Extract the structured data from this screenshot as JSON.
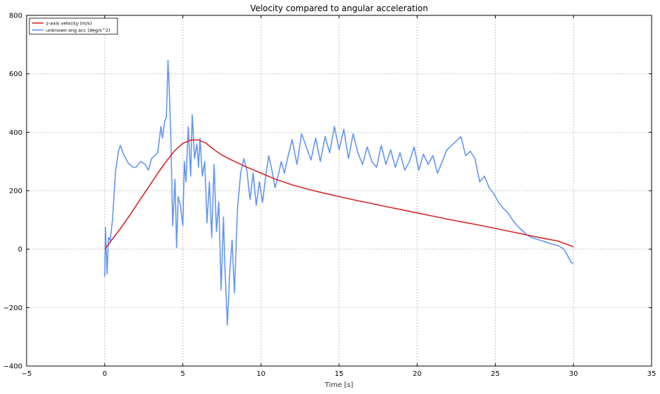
{
  "chart_data": {
    "type": "line",
    "title": "Velocity compared to angular acceleration",
    "xlabel": "Time [s]",
    "ylabel": "",
    "xlim": [
      -5,
      35
    ],
    "ylim": [
      -400,
      800
    ],
    "xticks": [
      -5,
      0,
      5,
      10,
      15,
      20,
      25,
      30,
      35
    ],
    "yticks": [
      -400,
      -200,
      0,
      200,
      400,
      600,
      800
    ],
    "grid": true,
    "legend_position": "top-left",
    "series": [
      {
        "name": "z-axis velocity (m/s)",
        "color": "#d62728",
        "x": [
          0,
          0.5,
          1,
          1.5,
          2,
          2.5,
          3,
          3.5,
          4,
          4.5,
          5,
          5.5,
          6,
          6.5,
          7,
          7.5,
          8,
          9,
          10,
          11,
          12,
          13,
          14,
          15,
          16,
          17,
          18,
          19,
          20,
          21,
          22,
          23,
          24,
          25,
          26,
          27,
          28,
          29,
          30
        ],
        "y": [
          0,
          35,
          70,
          108,
          148,
          188,
          228,
          268,
          305,
          338,
          362,
          373,
          374,
          362,
          340,
          322,
          308,
          283,
          260,
          238,
          220,
          205,
          192,
          180,
          168,
          157,
          146,
          135,
          124,
          113,
          102,
          92,
          82,
          71,
          60,
          49,
          38,
          28,
          8
        ]
      },
      {
        "name": "unknown ang acc (deg/s^2)",
        "color": "#6495ed",
        "x": [
          0,
          0.05,
          0.15,
          0.25,
          0.35,
          0.5,
          0.7,
          0.9,
          1.0,
          1.2,
          1.5,
          1.8,
          2.0,
          2.3,
          2.6,
          2.8,
          3.0,
          3.2,
          3.4,
          3.6,
          3.7,
          3.85,
          3.95,
          4.05,
          4.15,
          4.25,
          4.35,
          4.5,
          4.6,
          4.7,
          4.85,
          5.0,
          5.1,
          5.2,
          5.35,
          5.5,
          5.6,
          5.75,
          5.9,
          6.0,
          6.1,
          6.25,
          6.4,
          6.55,
          6.7,
          6.85,
          7.0,
          7.15,
          7.3,
          7.45,
          7.6,
          7.7,
          7.85,
          8.0,
          8.15,
          8.3,
          8.5,
          8.7,
          8.9,
          9.1,
          9.3,
          9.5,
          9.7,
          9.9,
          10.1,
          10.3,
          10.5,
          10.7,
          10.9,
          11.1,
          11.3,
          11.5,
          11.7,
          12.0,
          12.3,
          12.6,
          12.9,
          13.2,
          13.5,
          13.8,
          14.1,
          14.4,
          14.7,
          15.0,
          15.3,
          15.6,
          15.9,
          16.2,
          16.5,
          16.8,
          17.1,
          17.4,
          17.7,
          18.0,
          18.3,
          18.6,
          18.9,
          19.2,
          19.5,
          19.8,
          20.1,
          20.4,
          20.7,
          21.0,
          21.3,
          21.6,
          21.9,
          22.2,
          22.5,
          22.8,
          23.1,
          23.4,
          23.7,
          24.0,
          24.3,
          24.6,
          24.9,
          25.2,
          25.5,
          25.8,
          26.1,
          26.4,
          26.7,
          27.0,
          27.3,
          27.6,
          27.9,
          28.2,
          28.5,
          28.8,
          29.1,
          29.4,
          29.7,
          29.85,
          30.0
        ],
        "y": [
          -95,
          75,
          -85,
          40,
          30,
          100,
          270,
          340,
          355,
          325,
          295,
          280,
          280,
          300,
          290,
          270,
          310,
          320,
          330,
          420,
          380,
          440,
          450,
          645,
          520,
          350,
          80,
          240,
          5,
          180,
          150,
          80,
          300,
          230,
          420,
          250,
          460,
          310,
          360,
          280,
          380,
          250,
          300,
          90,
          230,
          40,
          290,
          60,
          160,
          -140,
          110,
          -70,
          -260,
          -80,
          30,
          -150,
          140,
          260,
          310,
          270,
          170,
          260,
          150,
          230,
          160,
          250,
          320,
          270,
          210,
          250,
          300,
          260,
          310,
          375,
          290,
          395,
          350,
          305,
          380,
          300,
          385,
          330,
          420,
          340,
          410,
          310,
          395,
          330,
          290,
          350,
          300,
          280,
          355,
          290,
          340,
          280,
          330,
          270,
          300,
          350,
          270,
          325,
          290,
          320,
          260,
          300,
          340,
          355,
          370,
          385,
          320,
          335,
          310,
          230,
          250,
          210,
          190,
          160,
          140,
          125,
          100,
          80,
          65,
          50,
          40,
          35,
          30,
          25,
          20,
          15,
          10,
          0,
          -30,
          -45,
          -50
        ]
      }
    ]
  }
}
